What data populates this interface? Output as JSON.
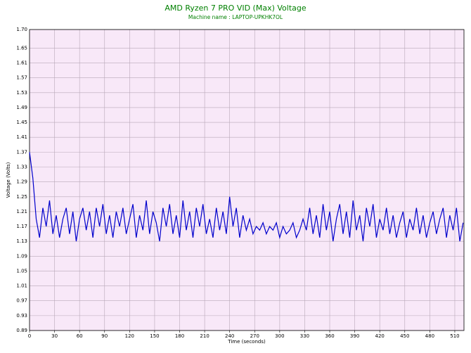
{
  "chart_data": {
    "type": "line",
    "title": "AMD Ryzen 7 PRO VID (Max) Voltage",
    "subtitle": "Machine name : LAPTOP-UPKHK7OL",
    "x_label": "Time (seconds)",
    "y_label": "Voltage (Volts)",
    "x": [
      0,
      4,
      8,
      12,
      16,
      20,
      24,
      28,
      32,
      36,
      40,
      44,
      48,
      52,
      56,
      60,
      64,
      68,
      72,
      76,
      80,
      84,
      88,
      92,
      96,
      100,
      104,
      108,
      112,
      116,
      120,
      124,
      128,
      132,
      136,
      140,
      144,
      148,
      152,
      156,
      160,
      164,
      168,
      172,
      176,
      180,
      184,
      188,
      192,
      196,
      200,
      204,
      208,
      212,
      216,
      220,
      224,
      228,
      232,
      236,
      240,
      244,
      248,
      252,
      256,
      260,
      264,
      268,
      272,
      276,
      280,
      284,
      288,
      292,
      296,
      300,
      304,
      308,
      312,
      316,
      320,
      324,
      328,
      332,
      336,
      340,
      344,
      348,
      352,
      356,
      360,
      364,
      368,
      372,
      376,
      380,
      384,
      388,
      392,
      396,
      400,
      404,
      408,
      412,
      416,
      420,
      424,
      428,
      432,
      436,
      440,
      444,
      448,
      452,
      456,
      460,
      464,
      468,
      472,
      476,
      480,
      484,
      488,
      492,
      496,
      500,
      504,
      508,
      512,
      516,
      520
    ],
    "series": [
      {
        "color": "#0000cc",
        "values": [
          1.37,
          1.3,
          1.19,
          1.14,
          1.22,
          1.17,
          1.24,
          1.15,
          1.2,
          1.14,
          1.19,
          1.22,
          1.15,
          1.21,
          1.13,
          1.19,
          1.22,
          1.16,
          1.21,
          1.14,
          1.22,
          1.17,
          1.23,
          1.15,
          1.2,
          1.14,
          1.21,
          1.17,
          1.22,
          1.15,
          1.19,
          1.23,
          1.14,
          1.2,
          1.16,
          1.24,
          1.15,
          1.21,
          1.18,
          1.13,
          1.22,
          1.17,
          1.23,
          1.15,
          1.2,
          1.14,
          1.24,
          1.16,
          1.21,
          1.14,
          1.22,
          1.17,
          1.23,
          1.15,
          1.19,
          1.14,
          1.22,
          1.16,
          1.21,
          1.15,
          1.25,
          1.17,
          1.22,
          1.14,
          1.2,
          1.16,
          1.19,
          1.15,
          1.17,
          1.16,
          1.18,
          1.15,
          1.17,
          1.16,
          1.18,
          1.14,
          1.17,
          1.15,
          1.16,
          1.18,
          1.14,
          1.16,
          1.19,
          1.16,
          1.22,
          1.15,
          1.2,
          1.14,
          1.23,
          1.16,
          1.21,
          1.13,
          1.19,
          1.23,
          1.15,
          1.21,
          1.14,
          1.24,
          1.16,
          1.2,
          1.13,
          1.22,
          1.17,
          1.23,
          1.14,
          1.19,
          1.16,
          1.22,
          1.15,
          1.2,
          1.14,
          1.18,
          1.21,
          1.14,
          1.19,
          1.16,
          1.22,
          1.15,
          1.2,
          1.14,
          1.18,
          1.21,
          1.15,
          1.19,
          1.22,
          1.14,
          1.2,
          1.16,
          1.22,
          1.13,
          1.18
        ]
      }
    ],
    "xlim": [
      0,
      521
    ],
    "xticks": [
      0,
      30,
      60,
      90,
      120,
      150,
      180,
      210,
      240,
      270,
      300,
      330,
      360,
      390,
      420,
      450,
      480,
      510
    ],
    "ylim": [
      0.89,
      1.7
    ],
    "yticks": [
      0.89,
      0.93,
      0.97,
      1.01,
      1.05,
      1.09,
      1.13,
      1.17,
      1.21,
      1.25,
      1.29,
      1.33,
      1.37,
      1.41,
      1.45,
      1.49,
      1.53,
      1.57,
      1.61,
      1.65,
      {
        "value": 1.7,
        "label": "1.70"
      }
    ],
    "grid": true,
    "plot_background": "#f8e8f8",
    "title_color": "#008000"
  }
}
